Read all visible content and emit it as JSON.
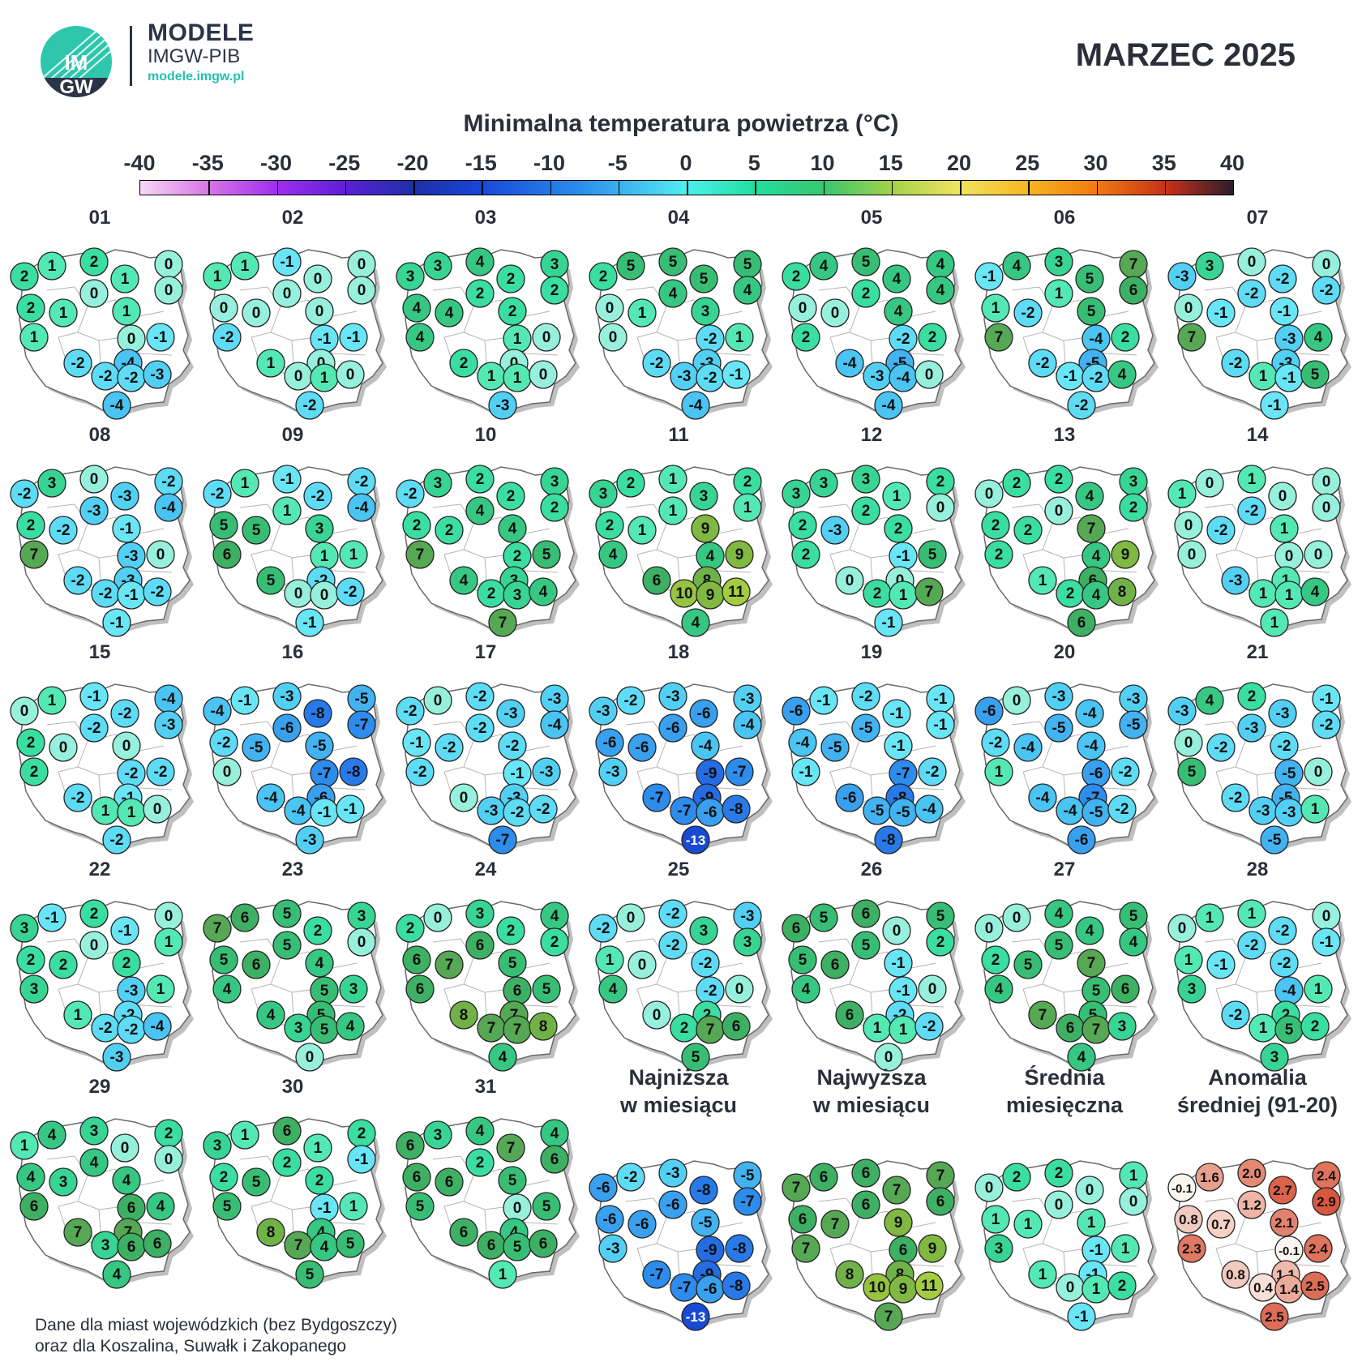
{
  "header": {
    "brand_title": "MODELE",
    "brand_subtitle": "IMGW-PIB",
    "brand_url": "modele.imgw.pl",
    "logo_text_top": "IM",
    "logo_text_bottom": "GW",
    "month_title": "MARZEC 2025"
  },
  "legend": {
    "title": "Minimalna temperatura powietrza (°C)",
    "ticks": [
      "-40",
      "-35",
      "-30",
      "-25",
      "-20",
      "-15",
      "-10",
      "-5",
      "0",
      "5",
      "10",
      "15",
      "20",
      "25",
      "30",
      "35",
      "40"
    ],
    "min": -40,
    "max": 40
  },
  "footnote": [
    "Dane dla miast wojewódzkich (bez Bydgoszczy)",
    "oraz dla Koszalina, Suwałk i Zakopanego"
  ],
  "chart_data": {
    "type": "map",
    "variable": "Minimalna temperatura powietrza (°C)",
    "days": [
      {
        "label": "01",
        "values": [
          2,
          1,
          2,
          0,
          0,
          1,
          2,
          1,
          0,
          1,
          0,
          -4,
          -1,
          -2,
          -2,
          -2,
          -3,
          -4,
          1
        ]
      },
      {
        "label": "02",
        "values": [
          1,
          1,
          -1,
          0,
          0,
          0,
          0,
          0,
          0,
          -2,
          -1,
          0,
          -1,
          1,
          0,
          1,
          0,
          -2,
          0
        ]
      },
      {
        "label": "03",
        "values": [
          3,
          3,
          4,
          3,
          2,
          2,
          4,
          4,
          2,
          4,
          1,
          0,
          0,
          2,
          1,
          1,
          0,
          -3,
          2
        ]
      },
      {
        "label": "04",
        "values": [
          2,
          5,
          5,
          5,
          4,
          5,
          0,
          1,
          4,
          0,
          -2,
          -3,
          1,
          -2,
          -3,
          -2,
          -1,
          -4,
          3
        ]
      },
      {
        "label": "05",
        "values": [
          2,
          4,
          5,
          4,
          4,
          4,
          0,
          0,
          2,
          2,
          -2,
          -5,
          2,
          -4,
          -3,
          -4,
          0,
          -4,
          4
        ]
      },
      {
        "label": "06",
        "values": [
          -1,
          4,
          3,
          7,
          6,
          5,
          1,
          -2,
          1,
          7,
          -4,
          -5,
          2,
          -2,
          -1,
          -2,
          4,
          -2,
          5
        ]
      },
      {
        "label": "07",
        "values": [
          -3,
          3,
          0,
          0,
          -2,
          -2,
          0,
          -1,
          -2,
          7,
          -3,
          -3,
          4,
          -2,
          1,
          -1,
          5,
          -1,
          -1
        ]
      },
      {
        "label": "08",
        "values": [
          -2,
          3,
          0,
          -2,
          -4,
          -3,
          2,
          -2,
          -3,
          7,
          -3,
          -3,
          0,
          -2,
          -2,
          -1,
          -2,
          -1,
          -1
        ]
      },
      {
        "label": "09",
        "values": [
          -2,
          1,
          -1,
          -2,
          -4,
          -2,
          5,
          5,
          1,
          6,
          1,
          -2,
          1,
          5,
          0,
          0,
          -2,
          -1,
          3
        ]
      },
      {
        "label": "10",
        "values": [
          -2,
          3,
          2,
          3,
          2,
          2,
          2,
          2,
          4,
          7,
          2,
          3,
          5,
          4,
          2,
          3,
          4,
          7,
          4
        ]
      },
      {
        "label": "11",
        "values": [
          3,
          2,
          1,
          2,
          1,
          3,
          2,
          1,
          1,
          4,
          4,
          8,
          9,
          6,
          10,
          9,
          11,
          4,
          9
        ]
      },
      {
        "label": "12",
        "values": [
          3,
          3,
          3,
          2,
          0,
          1,
          2,
          -3,
          2,
          2,
          -1,
          0,
          5,
          0,
          2,
          1,
          7,
          -1,
          2
        ]
      },
      {
        "label": "13",
        "values": [
          0,
          2,
          2,
          3,
          2,
          4,
          2,
          2,
          0,
          2,
          4,
          6,
          9,
          1,
          2,
          4,
          8,
          6,
          7
        ]
      },
      {
        "label": "14",
        "values": [
          1,
          0,
          1,
          0,
          0,
          0,
          0,
          -2,
          -2,
          0,
          0,
          1,
          0,
          -3,
          1,
          1,
          4,
          1,
          1
        ]
      },
      {
        "label": "15",
        "values": [
          0,
          1,
          -1,
          -4,
          -3,
          -2,
          2,
          0,
          -2,
          2,
          -2,
          -1,
          -2,
          -2,
          1,
          1,
          0,
          -2,
          0
        ]
      },
      {
        "label": "16",
        "values": [
          -4,
          -1,
          -3,
          -5,
          -7,
          -8,
          -2,
          -5,
          -6,
          0,
          -7,
          -6,
          -8,
          -4,
          -4,
          -1,
          -1,
          -3,
          -5
        ]
      },
      {
        "label": "17",
        "values": [
          -2,
          0,
          -2,
          -3,
          -4,
          -3,
          -1,
          -2,
          -2,
          -2,
          -1,
          -3,
          -3,
          0,
          -3,
          -2,
          -2,
          -7,
          -2
        ]
      },
      {
        "label": "18",
        "values": [
          -3,
          -2,
          -3,
          -3,
          -4,
          -6,
          -6,
          -6,
          -6,
          -3,
          -9,
          -9,
          -7,
          -7,
          -7,
          -6,
          -8,
          -13,
          -4
        ]
      },
      {
        "label": "19",
        "values": [
          -6,
          -1,
          -2,
          -1,
          -1,
          -1,
          -4,
          -5,
          -5,
          -1,
          -7,
          -8,
          -2,
          -6,
          -5,
          -5,
          -4,
          -8,
          -1
        ]
      },
      {
        "label": "20",
        "values": [
          -6,
          0,
          -3,
          -3,
          -5,
          -4,
          -2,
          -4,
          -5,
          1,
          -6,
          -7,
          -2,
          -4,
          -4,
          -5,
          -2,
          -6,
          -4
        ]
      },
      {
        "label": "21",
        "values": [
          -3,
          4,
          2,
          -1,
          -2,
          -3,
          0,
          -2,
          -3,
          5,
          -5,
          -5,
          0,
          -2,
          -3,
          -3,
          1,
          -5,
          -2
        ]
      },
      {
        "label": "22",
        "values": [
          3,
          -1,
          2,
          0,
          1,
          -1,
          2,
          2,
          0,
          3,
          -3,
          -2,
          1,
          1,
          -2,
          -2,
          -4,
          -3,
          2
        ]
      },
      {
        "label": "23",
        "values": [
          7,
          6,
          5,
          3,
          0,
          2,
          5,
          6,
          5,
          4,
          5,
          5,
          3,
          4,
          3,
          5,
          4,
          0,
          4
        ]
      },
      {
        "label": "24",
        "values": [
          2,
          0,
          3,
          4,
          2,
          2,
          6,
          7,
          6,
          6,
          6,
          7,
          5,
          8,
          7,
          7,
          8,
          4,
          5
        ]
      },
      {
        "label": "25",
        "values": [
          -2,
          0,
          -2,
          -3,
          3,
          3,
          1,
          0,
          -2,
          4,
          -2,
          2,
          0,
          0,
          2,
          7,
          6,
          5,
          -2
        ]
      },
      {
        "label": "26",
        "values": [
          6,
          5,
          6,
          5,
          2,
          0,
          5,
          6,
          5,
          4,
          -1,
          -2,
          0,
          6,
          1,
          1,
          -2,
          0,
          -1
        ]
      },
      {
        "label": "27",
        "values": [
          0,
          0,
          4,
          5,
          4,
          4,
          2,
          5,
          5,
          4,
          5,
          5,
          6,
          7,
          6,
          7,
          3,
          4,
          7
        ]
      },
      {
        "label": "28",
        "values": [
          0,
          1,
          1,
          0,
          -1,
          -2,
          1,
          -1,
          -2,
          3,
          -4,
          2,
          1,
          -2,
          1,
          5,
          2,
          3,
          -2
        ]
      },
      {
        "label": "29",
        "values": [
          1,
          4,
          3,
          2,
          0,
          0,
          4,
          3,
          4,
          6,
          6,
          7,
          4,
          7,
          3,
          6,
          6,
          4,
          4
        ]
      },
      {
        "label": "30",
        "values": [
          3,
          1,
          6,
          2,
          -1,
          1,
          2,
          5,
          2,
          5,
          -1,
          4,
          1,
          8,
          7,
          4,
          5,
          5,
          2
        ]
      },
      {
        "label": "31",
        "values": [
          6,
          3,
          4,
          4,
          6,
          7,
          6,
          6,
          2,
          5,
          0,
          4,
          5,
          6,
          6,
          5,
          6,
          1,
          5
        ]
      }
    ],
    "summaries": [
      {
        "title": [
          "Najniższa",
          "w miesiącu"
        ],
        "values": [
          -6,
          -2,
          -3,
          -5,
          -7,
          -8,
          -6,
          -6,
          -6,
          -3,
          -9,
          -9,
          -8,
          -7,
          -7,
          -6,
          -8,
          -13,
          -5
        ]
      },
      {
        "title": [
          "Najwyższa",
          "w miesiącu"
        ],
        "values": [
          7,
          6,
          6,
          7,
          6,
          7,
          6,
          7,
          6,
          7,
          6,
          8,
          9,
          8,
          10,
          9,
          11,
          7,
          9
        ]
      },
      {
        "title": [
          "Średnia",
          "miesięczna"
        ],
        "values": [
          0,
          2,
          2,
          1,
          0,
          0,
          1,
          1,
          0,
          3,
          -1,
          -1,
          1,
          1,
          0,
          1,
          2,
          -1,
          1
        ]
      },
      {
        "title": [
          "Anomalia",
          "średniej (91-20)"
        ],
        "values": [
          "-0.1",
          "1.6",
          "2.0",
          "2.4",
          "2.9",
          "2.7",
          "0.8",
          "0.7",
          "1.2",
          "2.3",
          "-0.1",
          "1.1",
          "2.4",
          "0.8",
          "0.4",
          "1.4",
          "2.5",
          "2.5",
          "2.1"
        ],
        "anomaly": true
      }
    ]
  }
}
